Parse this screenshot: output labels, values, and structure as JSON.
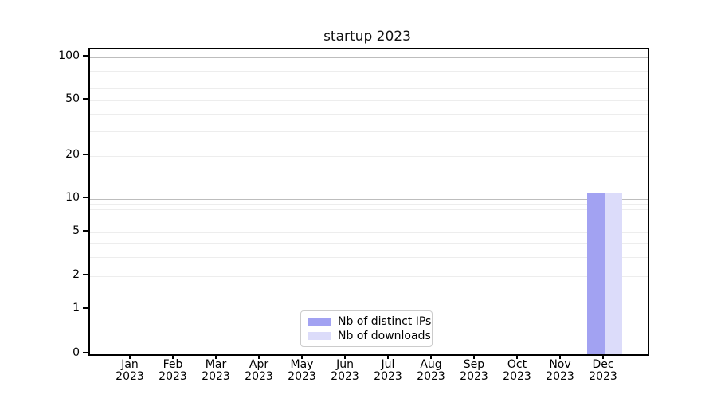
{
  "title": "startup 2023",
  "colors": {
    "distinct_ips_bar": "#a2a2f2",
    "downloads_bar": "#dcdcfa",
    "major_grid": "#bdbdbd",
    "minor_grid": "#ededed",
    "axis_spine": "#000000",
    "legend_border": "#cccccc"
  },
  "chart_data": {
    "type": "bar",
    "title": "startup 2023",
    "scale": "symlog",
    "categories": [
      "Jan",
      "Feb",
      "Mar",
      "Apr",
      "May",
      "Jun",
      "Jul",
      "Aug",
      "Sep",
      "Oct",
      "Nov",
      "Dec"
    ],
    "category_year": "2023",
    "series": [
      {
        "name": "Nb of distinct IPs",
        "color": "#a2a2f2",
        "values": [
          0,
          0,
          0,
          0,
          0,
          0,
          0,
          0,
          0,
          0,
          0,
          11
        ]
      },
      {
        "name": "Nb of downloads",
        "color": "#dcdcfa",
        "values": [
          0,
          0,
          0,
          0,
          0,
          0,
          0,
          0,
          0,
          0,
          0,
          11
        ]
      }
    ],
    "xlabel": "",
    "ylabel": "",
    "ylim": [
      0,
      115
    ],
    "y_ticks": [
      100,
      50,
      20,
      10,
      5,
      2,
      1,
      0
    ],
    "y_major_gridlines": [
      1,
      10,
      100
    ],
    "y_minor_gridlines": [
      2,
      3,
      4,
      5,
      6,
      7,
      8,
      9,
      20,
      30,
      40,
      50,
      60,
      70,
      80,
      90
    ],
    "grid": true,
    "legend_position": "lower center"
  }
}
